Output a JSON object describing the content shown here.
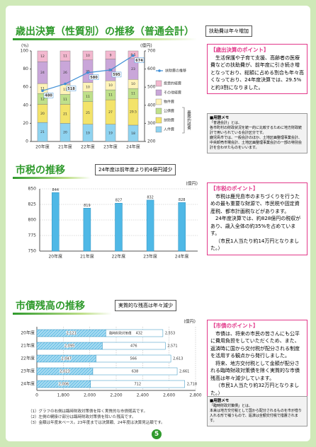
{
  "chart_data": [
    {
      "type": "bar",
      "stacked": true,
      "title": "歳出決算（性質別）の推移（普通会計）",
      "subtitle": "扶助費は年々増加",
      "y_label": "(%)",
      "y2_label": "(億円)",
      "categories": [
        "20年度",
        "21年度",
        "22年度",
        "23年度",
        "24年度"
      ],
      "series": [
        {
          "name": "人件費",
          "color": "#8fd3f0",
          "values": [
            21,
            20,
            19,
            19,
            18
          ]
        },
        {
          "name": "扶助費",
          "color": "#f3e36a",
          "values": [
            20,
            21,
            25,
            27,
            29.5
          ]
        },
        {
          "name": "公債費",
          "color": "#bfe08a",
          "values": [
            12,
            11,
            11,
            11,
            11
          ]
        },
        {
          "name": "物件費",
          "color": "#fff3b8",
          "values": [
            11,
            11,
            10,
            10,
            10
          ]
        },
        {
          "name": "その他経費",
          "color": "#c9a6d9",
          "values": [
            24,
            26,
            25,
            24,
            23
          ]
        },
        {
          "name": "投資的経費",
          "color": "#f3b8cf",
          "values": [
            12,
            11,
            10,
            9,
            8.5
          ]
        },
        {
          "name": "扶助費の推移",
          "type": "line",
          "axis": "y2",
          "color": "#3f8fd6",
          "values": [
            480,
            518,
            580,
            595,
            674
          ]
        }
      ],
      "legend_group": "義務的経費",
      "ylim": [
        0,
        100
      ],
      "yticks": [
        0,
        20,
        40,
        60,
        80,
        100
      ],
      "y2lim": [
        200,
        700
      ],
      "y2ticks": [
        200,
        300,
        400,
        500,
        600,
        700
      ],
      "grid": false
    },
    {
      "type": "bar",
      "title": "市税の推移",
      "subtitle": "24年度は前年度より約4億円減少",
      "y_label": "(億円)",
      "categories": [
        "20年度",
        "21年度",
        "22年度",
        "23年度",
        "24年度"
      ],
      "values": [
        844,
        819,
        827,
        832,
        828
      ],
      "color": "#4fb8e6",
      "ylim": [
        750,
        850
      ],
      "yticks": [
        750,
        775,
        800,
        825,
        850
      ],
      "grid": true
    },
    {
      "type": "bar",
      "orientation": "horizontal",
      "stacked": true,
      "title": "市債残高の推移",
      "subtitle": "実質的な残高は年々減少",
      "x_label": "(億円)",
      "categories": [
        "20年度",
        "21年度",
        "22年度",
        "23年度",
        "24年度"
      ],
      "series": [
        {
          "color": "#7ec9ea",
          "hatched": true,
          "values": [
            2121,
            2095,
            2047,
            2023,
            2006
          ],
          "value_labels": [
            "2,121",
            "2,095",
            "2,047",
            "2,023",
            "2,006"
          ]
        },
        {
          "name": "臨時財政対策債",
          "color": "#ffffff",
          "values": [
            432,
            476,
            566,
            638,
            712
          ]
        }
      ],
      "totals": [
        2553,
        2571,
        2613,
        2661,
        2718
      ],
      "total_labels": [
        "2,553",
        "2,571",
        "2,613",
        "2,661",
        "2,718"
      ],
      "xlim": [
        0,
        2800
      ],
      "xticks": [
        0,
        {
          "value": 1800,
          "label": "1,800"
        },
        {
          "value": 2000,
          "label": "2,000"
        },
        {
          "value": 2200,
          "label": "2,200"
        },
        {
          "value": 2400,
          "label": "2,400"
        },
        {
          "value": 2600,
          "label": "2,600"
        },
        {
          "value": 2800,
          "label": "2,800"
        }
      ],
      "grid": true,
      "footnotes": [
        "（1）グラフの右側は臨時財政対策債を除く実質的な市債残高です。",
        "（2）左側の網掛け部分は臨時財政対策債を除いた残高です。",
        "（3）金額は年度末ベース。23年度までは決算額、24年度は決算見込額です。"
      ]
    }
  ],
  "points": [
    {
      "heading": "【歳出決算のポイント】",
      "paragraphs": [
        "生活保護や子育て支援、高齢者の医療費などの扶助費が、前年度に引き続き増となっており、総額に占める割合も年々高くなっており、24年度決算では、29.5%と約3割になりました。"
      ]
    },
    {
      "heading": "【市税のポイント】",
      "paragraphs": [
        "市税は鹿児島市のまちづくりを行うための最も重要な財源で、市民税や固定資産税、都市計画税などがあります。",
        "24年度決算では、約828億円の税収があり、歳入全体の約35%を占めています。",
        "（市民1人当たり約14万円となりました。）"
      ]
    },
    {
      "heading": "【市債のポイント】",
      "paragraphs": [
        "市債は、将来の市民の皆さんにも公平に費用負担をしていただくため、また、返済時に国から交付税が配分される制度を活用する観点から発行しました。",
        "将来、地方交付税として金額が配分される臨時財政対策債を除く実質的な市債残高は年々減少しています。",
        "（市民1人当たり約32万円となりました。）"
      ]
    }
  ],
  "memos": [
    {
      "heading": "■用語メモ",
      "paragraphs": [
        "「普通会計」とは、",
        "各市町村の財政状況を統一的に比較するために地方財政統計で用いられている会計区分です。",
        "鹿児島市では、一般会計のほか、土地区画整理事業会計、中央卸売市場会計、土地区画整理事業会計の一部の特別会計を合わせたものをいいます。"
      ]
    },
    {
      "heading": "■用語メモ",
      "paragraphs": [
        "「臨時財政対策債」とは、",
        "本来は地方交付税として国から配分されるものを市が借り入れる形で補うもので、返済は全額交付税で措置されます。"
      ]
    }
  ],
  "page_number": "5"
}
